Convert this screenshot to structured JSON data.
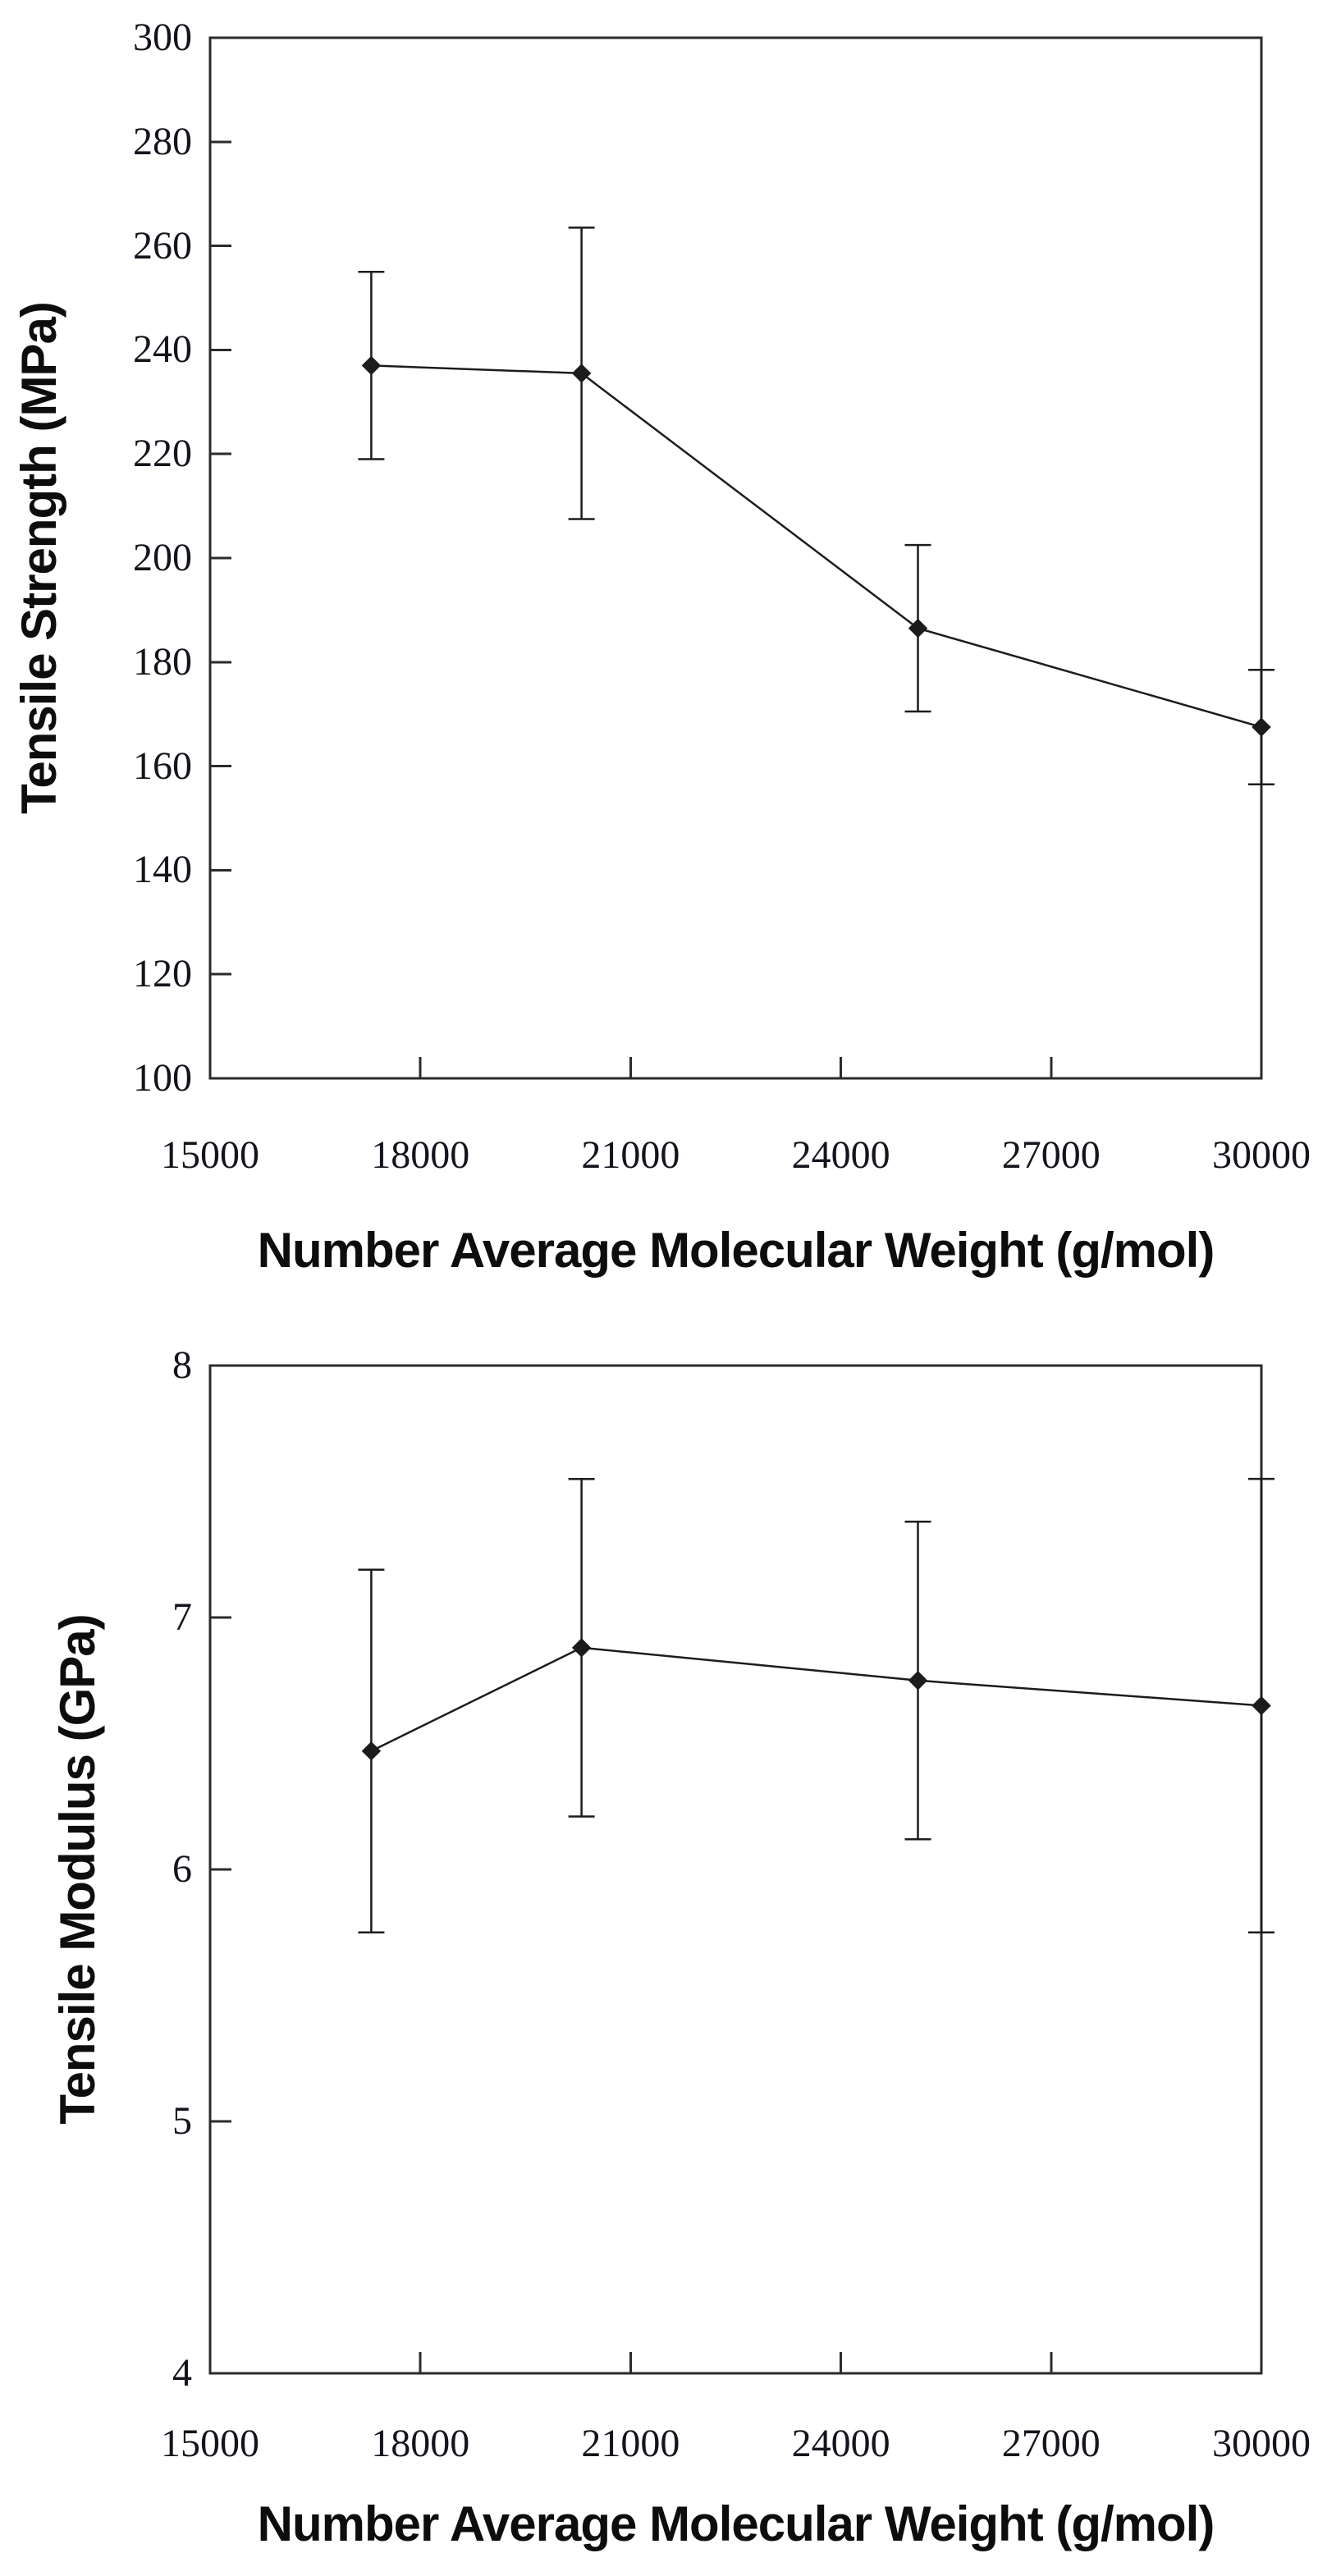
{
  "page": {
    "background": "#ffffff",
    "line_color": "#1c1c1c",
    "axis_color": "#2b2b2b",
    "tick_label_color": "#14141d",
    "title_color": "#0d0d0d"
  },
  "chart_data": [
    {
      "type": "line",
      "title": "",
      "xlabel": "Number Average Molecular Weight (g/mol)",
      "ylabel": "Tensile Strength (MPa)",
      "xlim": [
        15000,
        30000
      ],
      "ylim": [
        100,
        300
      ],
      "x_ticks": [
        15000,
        18000,
        21000,
        24000,
        27000,
        30000
      ],
      "x_tick_labels": [
        "15000",
        "18000",
        "21000",
        "24000",
        "27000",
        "30000"
      ],
      "y_ticks": [
        100,
        120,
        140,
        160,
        180,
        200,
        220,
        240,
        260,
        280,
        300
      ],
      "y_tick_labels": [
        "100",
        "120",
        "140",
        "160",
        "180",
        "200",
        "220",
        "240",
        "260",
        "280",
        "300"
      ],
      "grid": false,
      "legend": "none",
      "series": [
        {
          "name": "tensile-strength",
          "marker": "diamond",
          "color": "#1c1c1c",
          "x": [
            17300,
            20300,
            25100,
            30000
          ],
          "y": [
            237,
            235.5,
            186.5,
            167.5
          ],
          "y_err": [
            18,
            28,
            16,
            11
          ]
        }
      ]
    },
    {
      "type": "line",
      "title": "",
      "xlabel": "Number Average Molecular Weight (g/mol)",
      "ylabel": "Tensile Modulus (GPa)",
      "xlim": [
        15000,
        30000
      ],
      "ylim": [
        4,
        8
      ],
      "x_ticks": [
        15000,
        18000,
        21000,
        24000,
        27000,
        30000
      ],
      "x_tick_labels": [
        "15000",
        "18000",
        "21000",
        "24000",
        "27000",
        "30000"
      ],
      "y_ticks": [
        4,
        5,
        6,
        7,
        8
      ],
      "y_tick_labels": [
        "4",
        "5",
        "6",
        "7",
        "8"
      ],
      "grid": false,
      "legend": "none",
      "series": [
        {
          "name": "tensile-modulus",
          "marker": "diamond",
          "color": "#1c1c1c",
          "x": [
            17300,
            20300,
            25100,
            30000
          ],
          "y": [
            6.47,
            6.88,
            6.75,
            6.65
          ],
          "y_err": [
            0.72,
            0.67,
            0.63,
            0.9
          ]
        }
      ]
    }
  ]
}
